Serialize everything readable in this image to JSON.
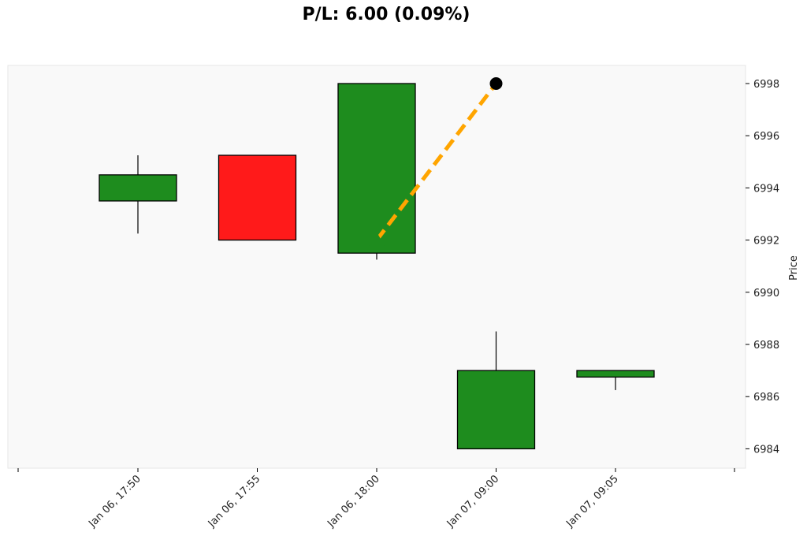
{
  "chart_data": {
    "type": "candlestick",
    "title": "P/L: 6.00 (0.09%)",
    "ylabel": "Price",
    "xlabel": "",
    "ylim": [
      6983.3,
      6998.7
    ],
    "y_ticks": [
      6984,
      6986,
      6988,
      6990,
      6992,
      6994,
      6996,
      6998
    ],
    "categories": [
      "Jan 06, 17:50",
      "Jan 06, 17:55",
      "Jan 06, 18:00",
      "Jan 07, 09:00",
      "Jan 07, 09:05"
    ],
    "candles": [
      {
        "x": "Jan 06, 17:50",
        "open": 6993.5,
        "high": 6995.25,
        "low": 6992.25,
        "close": 6994.5
      },
      {
        "x": "Jan 06, 17:55",
        "open": 6995.25,
        "high": 6995.25,
        "low": 6992.0,
        "close": 6992.0
      },
      {
        "x": "Jan 06, 18:00",
        "open": 6991.5,
        "high": 6998.0,
        "low": 6991.25,
        "close": 6998.0
      },
      {
        "x": "Jan 07, 09:00",
        "open": 6984.0,
        "high": 6988.5,
        "low": 6984.0,
        "close": 6987.0
      },
      {
        "x": "Jan 07, 09:05",
        "open": 6986.75,
        "high": 6987.0,
        "low": 6986.25,
        "close": 6987.0
      }
    ],
    "trade": {
      "entry": {
        "x": "Jan 06, 18:00",
        "price": 6992.0,
        "marker": "triangle-up"
      },
      "exit": {
        "x": "Jan 07, 09:00",
        "price": 6998.0,
        "marker": "circle"
      }
    },
    "colors": {
      "up": "#1e8c1e",
      "down": "#ff1a1a",
      "trade_line": "#ffa500",
      "entry_marker": "#1e8c1e",
      "exit_marker": "#000000",
      "plot_bg": "#f9f9f9"
    },
    "grid": false
  }
}
